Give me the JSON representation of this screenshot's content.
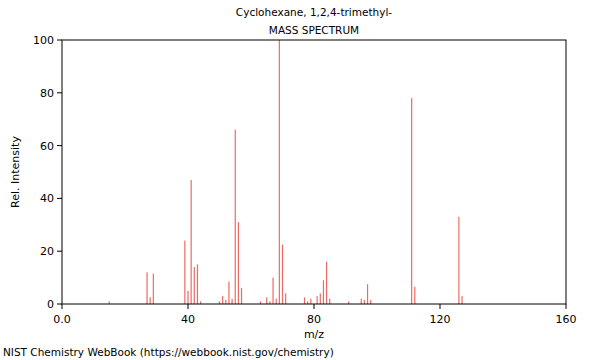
{
  "chart_data": {
    "type": "bar",
    "title": "Cyclohexane, 1,2,4-trimethyl-",
    "subtitle": "MASS SPECTRUM",
    "x_label": "m/z",
    "y_label": "Rel. Intensity",
    "annotation": "NIST Chemistry WebBook (https://webbook.nist.gov/chemistry)",
    "x": [
      15,
      27,
      28,
      29,
      39,
      40,
      41,
      42,
      43,
      44,
      50,
      51,
      52,
      53,
      54,
      55,
      56,
      57,
      63,
      65,
      66,
      67,
      68,
      69,
      70,
      71,
      77,
      78,
      79,
      81,
      82,
      83,
      84,
      85,
      91,
      95,
      96,
      97,
      98,
      111,
      112,
      126,
      127
    ],
    "values": [
      1,
      12,
      2.5,
      11.5,
      24,
      5,
      47,
      14,
      15,
      1,
      1,
      3,
      1.5,
      8.5,
      2,
      66,
      31,
      6,
      1,
      2.5,
      1,
      10,
      2,
      100,
      22.5,
      4,
      2.5,
      1,
      2,
      3,
      4,
      9,
      16,
      2,
      1,
      2,
      1.5,
      7.5,
      1.5,
      78,
      6.5,
      33,
      3
    ],
    "color": "#ee6b63",
    "xlim": [
      0,
      160
    ],
    "ylim": [
      0,
      100
    ],
    "xticks": [
      {
        "value": 0,
        "label": "0.0"
      },
      40,
      80,
      120,
      160
    ],
    "yticks": [
      0,
      20,
      40,
      60,
      80,
      100
    ],
    "grid": false
  }
}
